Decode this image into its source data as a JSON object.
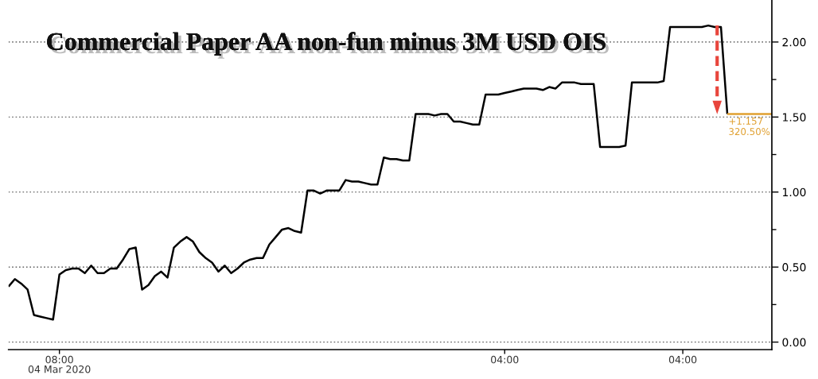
{
  "chart_data": {
    "type": "line",
    "title": "Commercial Paper AA non-fun minus 3M USD OIS",
    "categories": [
      null,
      null,
      null,
      null,
      null,
      null,
      null,
      null,
      "08:00\n04 Mar 2020",
      null,
      null,
      null,
      null,
      null,
      null,
      null,
      null,
      null,
      null,
      null,
      null,
      null,
      null,
      null,
      null,
      null,
      null,
      null,
      null,
      null,
      null,
      null,
      null,
      null,
      null,
      null,
      null,
      null,
      null,
      null,
      null,
      null,
      null,
      null,
      null,
      null,
      null,
      null,
      null,
      null,
      null,
      null,
      null,
      null,
      null,
      null,
      null,
      null,
      null,
      null,
      null,
      null,
      null,
      null,
      null,
      null,
      null,
      null,
      null,
      null,
      null,
      null,
      null,
      null,
      null,
      null,
      null,
      null,
      "04:00",
      null,
      null,
      null,
      null,
      null,
      null,
      null,
      null,
      null,
      null,
      null,
      null,
      null,
      null,
      null,
      null,
      null,
      null,
      null,
      null,
      null,
      null,
      null,
      null,
      null,
      null,
      null,
      "04:00",
      null,
      null,
      null,
      null,
      null,
      null,
      null,
      null,
      null,
      null,
      null,
      null,
      null,
      null
    ],
    "series": [
      {
        "color": "#000000",
        "values": [
          0.37,
          0.42,
          0.39,
          0.35,
          0.18,
          0.17,
          0.16,
          0.15,
          0.45,
          0.48,
          0.49,
          0.49,
          0.46,
          0.51,
          0.46,
          0.46,
          0.49,
          0.49,
          0.55,
          0.62,
          0.63,
          0.35,
          0.38,
          0.44,
          0.47,
          0.43,
          0.63,
          0.67,
          0.7,
          0.67,
          0.6,
          0.56,
          0.53,
          0.47,
          0.51,
          0.46,
          0.49,
          0.53,
          0.55,
          0.56,
          0.56,
          0.65,
          0.7,
          0.75,
          0.76,
          0.74,
          0.73,
          1.01,
          1.01,
          0.99,
          1.01,
          1.01,
          1.01,
          1.08,
          1.07,
          1.07,
          1.06,
          1.05,
          1.05,
          1.23,
          1.22,
          1.22,
          1.21,
          1.21,
          1.52,
          1.52,
          1.52,
          1.51,
          1.52,
          1.52,
          1.47,
          1.47,
          1.46,
          1.45,
          1.45,
          1.65,
          1.65,
          1.65,
          1.66,
          1.67,
          1.68,
          1.69,
          1.69,
          1.69,
          1.68,
          1.7,
          1.69,
          1.73,
          1.73,
          1.73,
          1.72,
          1.72,
          1.72,
          1.3,
          1.3,
          1.3,
          1.3,
          1.31,
          1.73,
          1.73,
          1.73,
          1.73,
          1.73,
          1.74,
          2.1,
          2.1,
          2.1,
          2.1,
          2.1,
          2.1,
          2.11,
          2.1,
          2.1,
          1.52,
          null,
          null,
          null,
          null,
          null,
          null,
          null
        ]
      },
      {
        "color": "#e0a030",
        "values": [
          null,
          null,
          null,
          null,
          null,
          null,
          null,
          null,
          null,
          null,
          null,
          null,
          null,
          null,
          null,
          null,
          null,
          null,
          null,
          null,
          null,
          null,
          null,
          null,
          null,
          null,
          null,
          null,
          null,
          null,
          null,
          null,
          null,
          null,
          null,
          null,
          null,
          null,
          null,
          null,
          null,
          null,
          null,
          null,
          null,
          null,
          null,
          null,
          null,
          null,
          null,
          null,
          null,
          null,
          null,
          null,
          null,
          null,
          null,
          null,
          null,
          null,
          null,
          null,
          null,
          null,
          null,
          null,
          null,
          null,
          null,
          null,
          null,
          null,
          null,
          null,
          null,
          null,
          null,
          null,
          null,
          null,
          null,
          null,
          null,
          null,
          null,
          null,
          null,
          null,
          null,
          null,
          null,
          null,
          null,
          null,
          null,
          null,
          null,
          null,
          null,
          null,
          null,
          null,
          null,
          null,
          null,
          null,
          null,
          null,
          null,
          null,
          null,
          1.52,
          1.52,
          1.52,
          1.52,
          1.52,
          1.52,
          1.52,
          1.52
        ]
      }
    ],
    "ylim": [
      -0.05,
      2.28
    ],
    "yticks": [
      {
        "value": 0,
        "label": "0.00"
      },
      {
        "value": 0.25,
        "label": null
      },
      {
        "value": 0.5,
        "label": "0.50"
      },
      {
        "value": 0.75,
        "label": null
      },
      {
        "value": 1,
        "label": "1.00"
      },
      {
        "value": 1.25,
        "label": null
      },
      {
        "value": 1.5,
        "label": "1.50"
      },
      {
        "value": 1.75,
        "label": null
      },
      {
        "value": 2,
        "label": "2.00"
      }
    ],
    "grid": "y",
    "annotations": [
      "+1.157\n320.50%"
    ]
  }
}
